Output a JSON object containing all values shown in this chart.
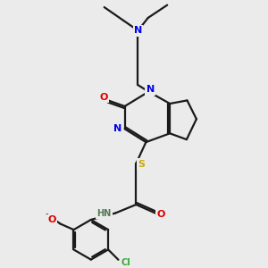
{
  "background_color": "#ebebeb",
  "bond_color": "#1a1a1a",
  "atom_colors": {
    "N": "#0000ee",
    "O": "#dd0000",
    "S": "#ccaa00",
    "Cl": "#33aa33",
    "H": "#557755",
    "C": "#1a1a1a"
  },
  "figsize": [
    3.0,
    3.0
  ],
  "dpi": 100
}
